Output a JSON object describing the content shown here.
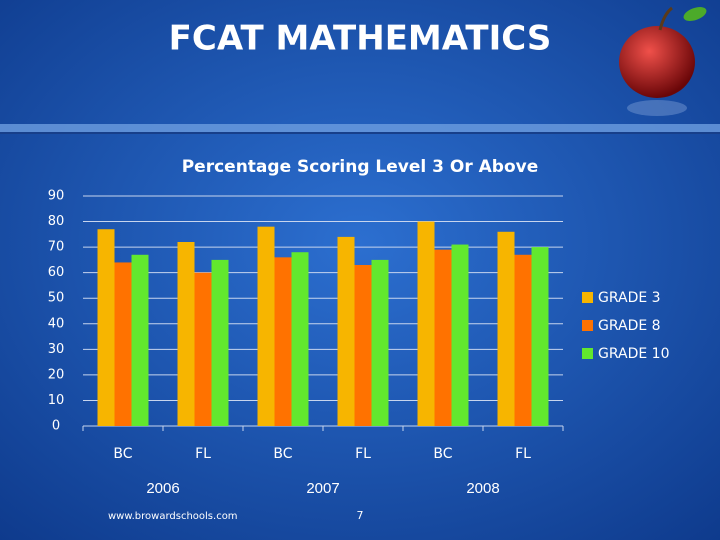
{
  "slide": {
    "title": "FCAT MATHEMATICS",
    "footer": "www.browardschools.com",
    "page_number": 7
  },
  "chart_data": {
    "type": "bar",
    "title": "Percentage Scoring Level 3 Or Above",
    "categories": [
      "BC",
      "FL",
      "BC",
      "FL",
      "BC",
      "FL"
    ],
    "groups": [
      "2006",
      "2007",
      "2008"
    ],
    "series": [
      {
        "name": "GRADE 3",
        "color": "#f7b500",
        "values": [
          77,
          72,
          78,
          74,
          80,
          76
        ]
      },
      {
        "name": "GRADE 8",
        "color": "#ff7200",
        "values": [
          64,
          60,
          66,
          63,
          69,
          67
        ]
      },
      {
        "name": "GRADE 10",
        "color": "#62e82e",
        "values": [
          67,
          65,
          68,
          65,
          71,
          70
        ]
      }
    ],
    "ylim": [
      0,
      90
    ],
    "yticks": [
      0,
      10,
      20,
      30,
      40,
      50,
      60,
      70,
      80,
      90
    ],
    "grid": true,
    "legend": "right"
  }
}
